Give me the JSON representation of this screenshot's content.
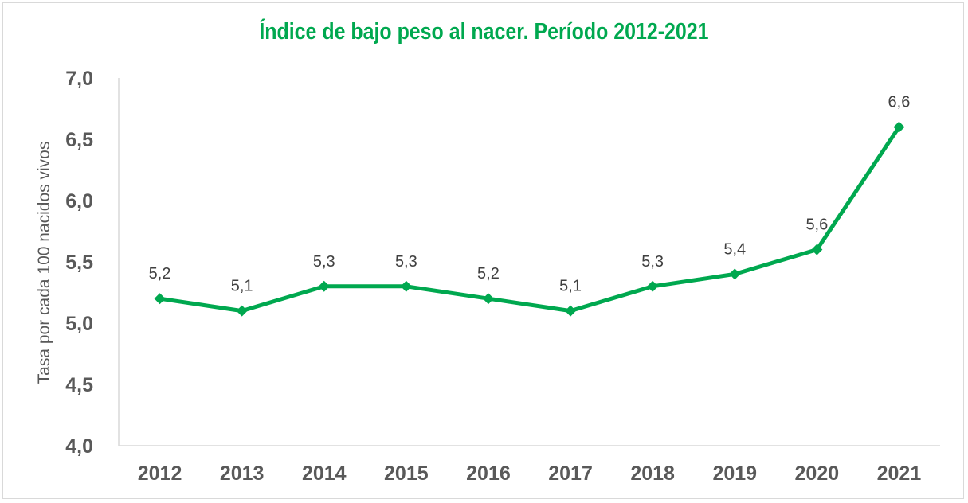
{
  "chart_data": {
    "type": "line",
    "title": "Índice de bajo peso al nacer. Período 2012-2021",
    "xlabel": "",
    "ylabel": "Tasa por cada 100 nacidos vivos",
    "categories": [
      "2012",
      "2013",
      "2014",
      "2015",
      "2016",
      "2017",
      "2018",
      "2019",
      "2020",
      "2021"
    ],
    "series": [
      {
        "name": "Índice de bajo peso al nacer",
        "values": [
          5.2,
          5.1,
          5.3,
          5.3,
          5.2,
          5.1,
          5.3,
          5.4,
          5.6,
          6.6
        ],
        "data_labels": [
          "5,2",
          "5,1",
          "5,3",
          "5,3",
          "5,2",
          "5,1",
          "5,3",
          "5,4",
          "5,6",
          "6,6"
        ],
        "color": "#00a84f",
        "marker": "diamond"
      }
    ],
    "ylim": [
      4.0,
      7.0
    ],
    "yticks": [
      4.0,
      4.5,
      5.0,
      5.5,
      6.0,
      6.5,
      7.0
    ],
    "ytick_labels": [
      "4,0",
      "4,5",
      "5,0",
      "5,5",
      "6,0",
      "6,5",
      "7,0"
    ],
    "grid": false,
    "legend": "none",
    "axis_color": "#d9d9d9",
    "title_color": "#00a84f",
    "text_color": "#595959"
  }
}
